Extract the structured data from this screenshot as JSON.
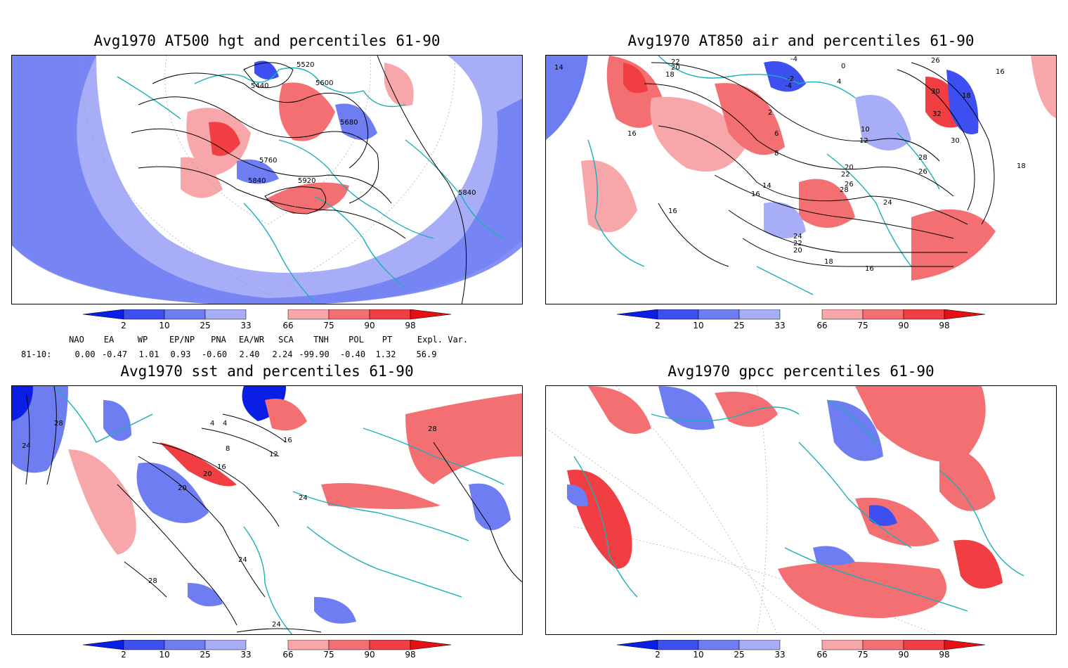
{
  "panels": [
    {
      "title": "Avg1970 AT500 hgt and percentiles 61-90",
      "contour_labels": [
        "5520",
        "5440",
        "5600",
        "5680",
        "5760",
        "5840",
        "5920",
        "5840"
      ]
    },
    {
      "title": "Avg1970 AT850 air and percentiles 61-90",
      "contour_labels": [
        "14",
        "22",
        "20",
        "18",
        "-4",
        "0",
        "26",
        "16",
        "-2",
        "-4",
        "4",
        "30",
        "18",
        "32",
        "2",
        "6",
        "10",
        "12",
        "8",
        "16",
        "30",
        "28",
        "26",
        "18",
        "20",
        "22",
        "26",
        "28",
        "24",
        "14",
        "16",
        "16",
        "24",
        "22",
        "20",
        "18",
        "16"
      ]
    },
    {
      "title": "Avg1970 sst and percentiles 61-90",
      "contour_labels": [
        "28",
        "24",
        "20",
        "4",
        "4",
        "8",
        "12",
        "16",
        "20",
        "16",
        "24",
        "28",
        "24",
        "28",
        "24"
      ]
    },
    {
      "title": "Avg1970 gpcc percentiles 61-90",
      "contour_labels": []
    }
  ],
  "colorbar": {
    "ticks": [
      "2",
      "10",
      "25",
      "33",
      "66",
      "75",
      "90",
      "98"
    ],
    "colors": {
      "below2": "#0a1ee6",
      "c2_10": "#3d4ff0",
      "c10_25": "#6e7df2",
      "c25_33": "#a7adf7",
      "c66_75": "#f7a7a9",
      "c75_90": "#f46f72",
      "c90_98": "#f03e42",
      "above98": "#e60f14"
    }
  },
  "indices": {
    "headers": [
      "NAO",
      "EA",
      "WP",
      "EP/NP",
      "PNA",
      "EA/WR",
      "SCA",
      "TNH",
      "POL",
      "PT",
      "Expl. Var."
    ],
    "row_label": "81-10:",
    "values": [
      "0.00",
      "-0.47",
      "1.01",
      "0.93",
      "-0.60",
      "2.40",
      "2.24",
      "-99.90",
      "-0.40",
      "1.32",
      "56.9"
    ]
  },
  "map_colors": {
    "coast": "#1ab0b8",
    "contour": "#000000",
    "grid": "#999999"
  }
}
